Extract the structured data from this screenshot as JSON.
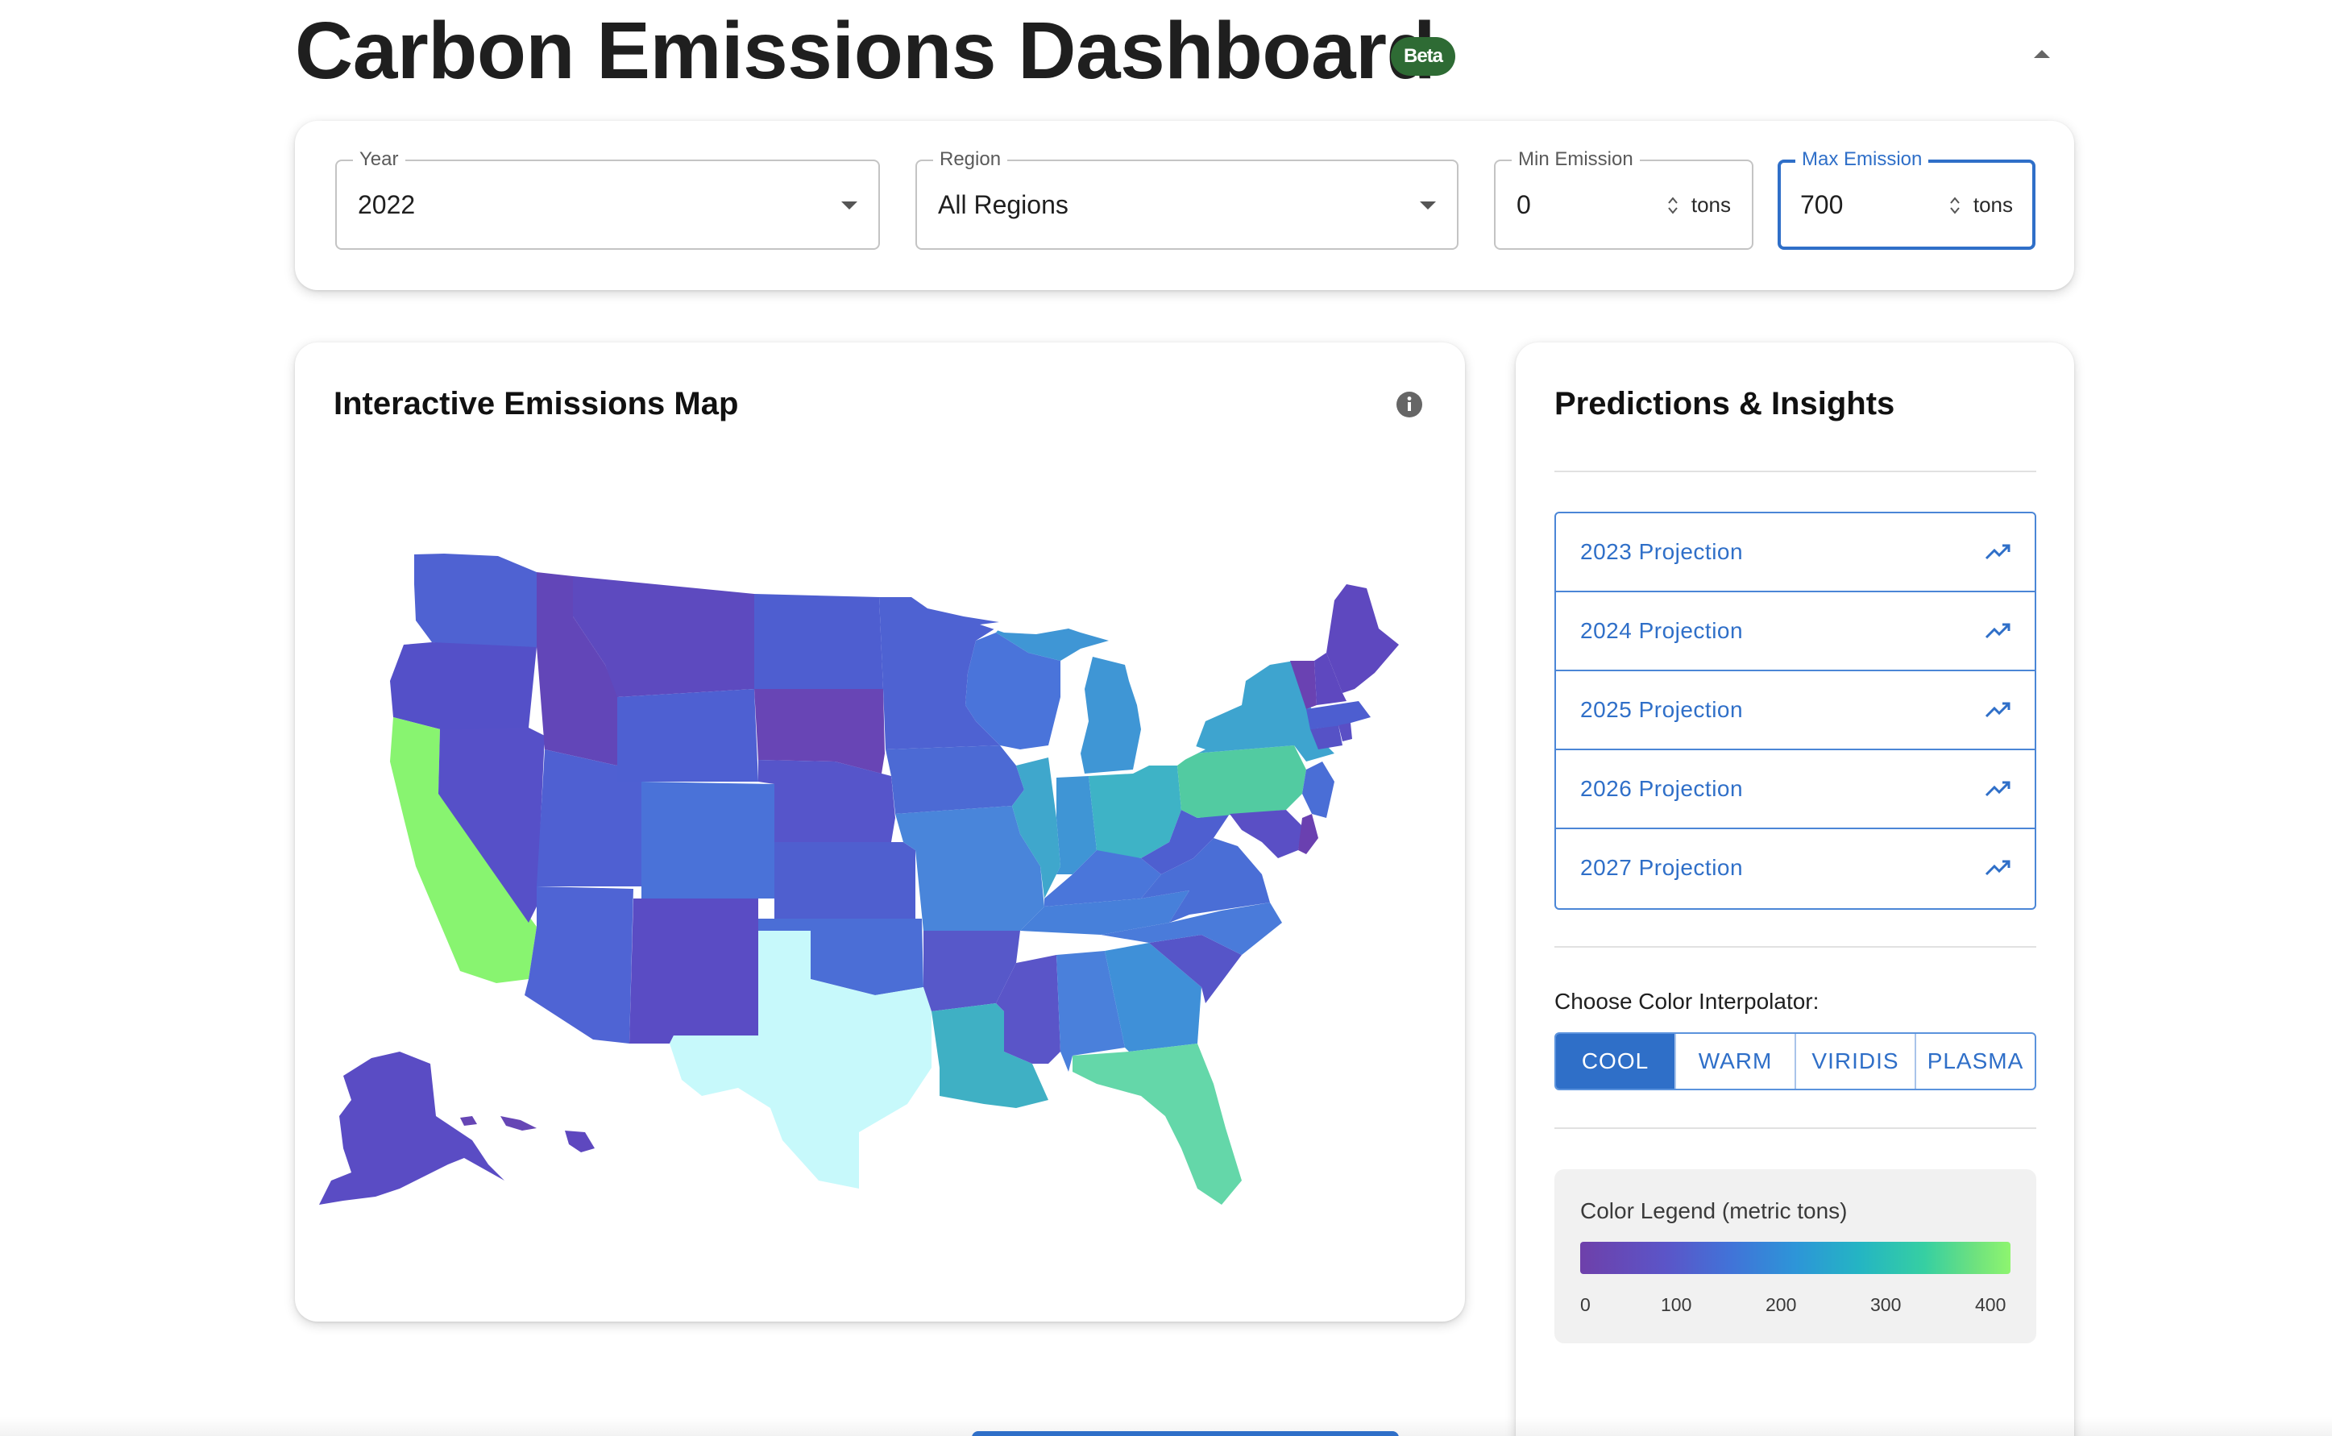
{
  "header": {
    "title": "Carbon Emissions Dashboard",
    "badge": "Beta",
    "collapse_icon": "chevron-up-icon"
  },
  "filters": {
    "year": {
      "label": "Year",
      "value": "2022"
    },
    "region": {
      "label": "Region",
      "value": "All Regions"
    },
    "min_emission": {
      "label": "Min Emission",
      "value": "0",
      "unit": "tons"
    },
    "max_emission": {
      "label": "Max Emission",
      "value": "700",
      "unit": "tons"
    }
  },
  "map_card": {
    "title": "Interactive Emissions Map",
    "info_icon": "info-icon"
  },
  "predictions": {
    "title": "Predictions & Insights",
    "items": [
      {
        "label": "2023 Projection",
        "icon": "trending-up-icon"
      },
      {
        "label": "2024 Projection",
        "icon": "trending-up-icon"
      },
      {
        "label": "2025 Projection",
        "icon": "trending-up-icon"
      },
      {
        "label": "2026 Projection",
        "icon": "trending-up-icon"
      },
      {
        "label": "2027 Projection",
        "icon": "trending-up-icon"
      }
    ],
    "interpolator_label": "Choose Color Interpolator:",
    "interpolators": [
      "COOL",
      "WARM",
      "VIRIDIS",
      "PLASMA"
    ],
    "selected_interpolator": "COOL",
    "legend": {
      "title": "Color Legend (metric tons)",
      "ticks": [
        "0",
        "100",
        "200",
        "300",
        "400"
      ]
    }
  },
  "colors": {
    "primary": "#2f6fc8",
    "beta_badge": "#2e6b34"
  }
}
